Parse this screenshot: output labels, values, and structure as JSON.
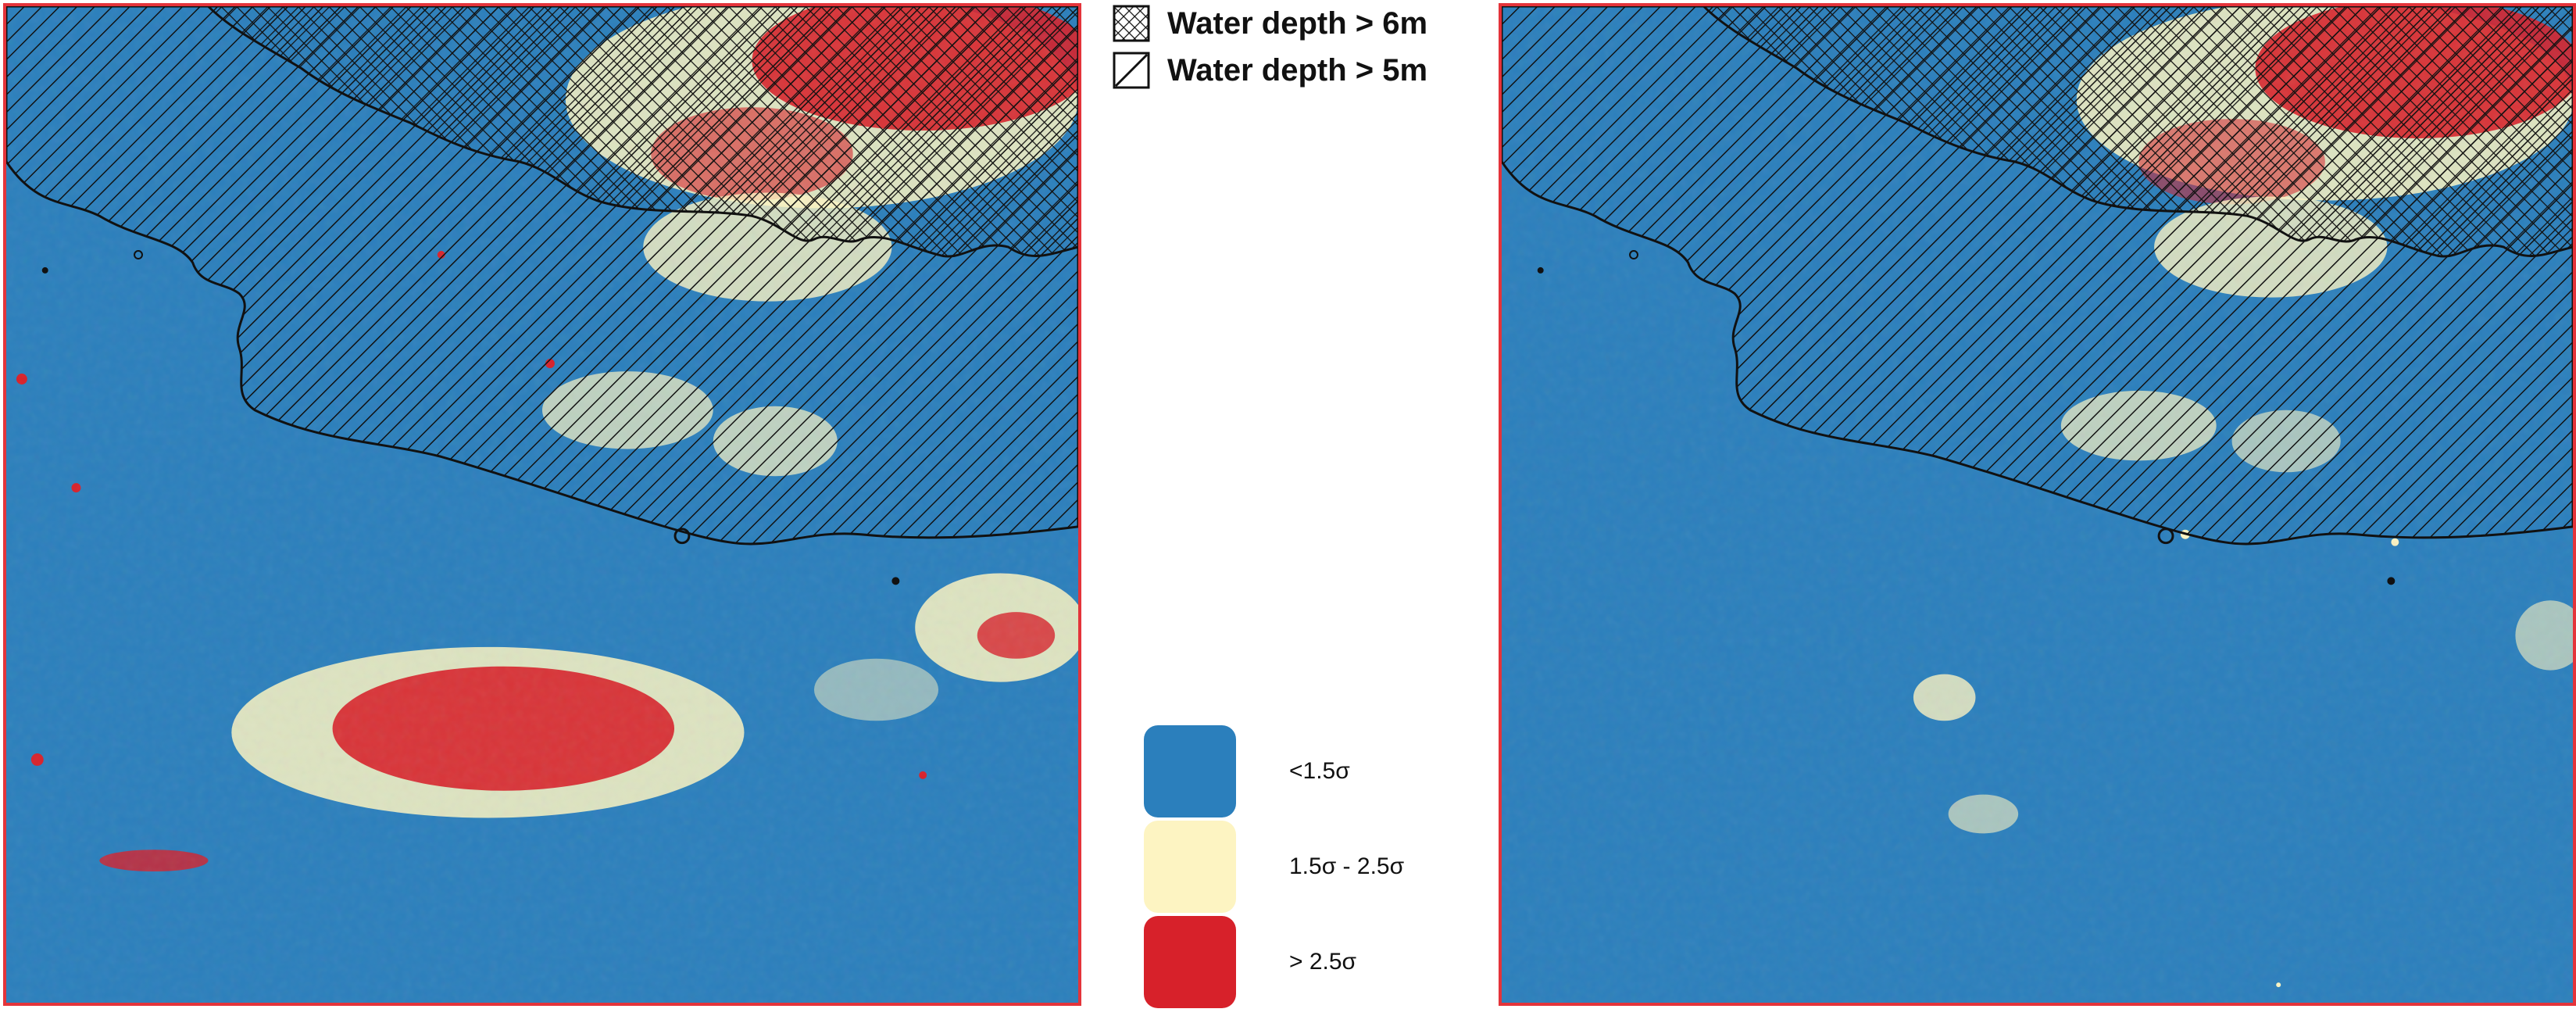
{
  "hatch_legend": {
    "depth6_label": "Water depth > 6m",
    "depth5_label": "Water depth > 5m",
    "depth6_icon": "crosshatch-icon",
    "depth5_icon": "diagonal-hatch-icon"
  },
  "class_legend": [
    {
      "label": "<1.5σ",
      "color": "#2b7fbc"
    },
    {
      "label": "1.5σ - 2.5σ",
      "color": "#fdf4c2"
    },
    {
      "label": "> 2.5σ",
      "color": "#d7212a"
    }
  ],
  "colors": {
    "background_class": "#2b7fbc",
    "mid_class": "#fdf4c2",
    "high_class": "#d7212a",
    "frame": "#e4343a",
    "outline": "#111111"
  }
}
